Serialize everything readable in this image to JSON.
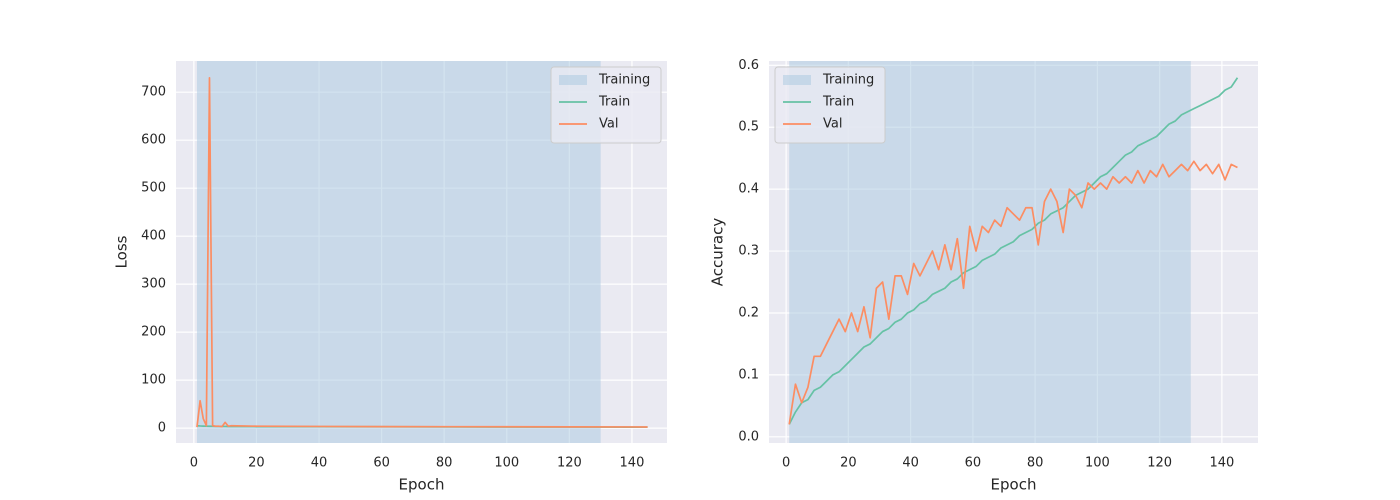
{
  "chart_data": [
    {
      "type": "line",
      "xlabel": "Epoch",
      "ylabel": "Loss",
      "xlim": [
        -5.7,
        151.2
      ],
      "ylim": [
        -31,
        765
      ],
      "xticks": [
        0,
        20,
        40,
        60,
        80,
        100,
        120,
        140
      ],
      "yticks": [
        0,
        100,
        200,
        300,
        400,
        500,
        600,
        700
      ],
      "grid": true,
      "legend": "upper right",
      "spans": [
        {
          "name": "Training",
          "start": 1,
          "end": 130,
          "color": "#a8c8e0"
        }
      ],
      "x": [
        1,
        2,
        3,
        4,
        5,
        6,
        7,
        8,
        9,
        10,
        11,
        12,
        20,
        40,
        60,
        80,
        100,
        120,
        140,
        145
      ],
      "series": [
        {
          "name": "Train",
          "color": "#66c2a5",
          "values": [
            5,
            4.5,
            4.2,
            4,
            3.9,
            3.8,
            3.7,
            3.6,
            3.5,
            3.5,
            3.4,
            3.4,
            3.2,
            3,
            2.8,
            2.6,
            2.4,
            2.2,
            2.1,
            2
          ]
        },
        {
          "name": "Val",
          "color": "#fc8d62",
          "values": [
            2,
            57,
            20,
            5,
            730,
            5,
            4,
            4,
            3,
            12,
            4,
            5,
            4,
            3.5,
            3.2,
            3,
            2.8,
            2.6,
            2.5,
            2.4
          ]
        }
      ]
    },
    {
      "type": "line",
      "xlabel": "Epoch",
      "ylabel": "Accuracy",
      "xlim": [
        -5.5,
        151.6
      ],
      "ylim": [
        -0.01,
        0.607
      ],
      "xticks": [
        0,
        20,
        40,
        60,
        80,
        100,
        120,
        140
      ],
      "yticks": [
        {
          "value": 0,
          "label": "0.0"
        },
        0.1,
        0.2,
        0.3,
        0.4,
        0.5,
        0.6
      ],
      "grid": true,
      "legend": "upper left",
      "spans": [
        {
          "name": "Training",
          "start": 1,
          "end": 130,
          "color": "#a8c8e0"
        }
      ],
      "x": [
        1,
        3,
        5,
        7,
        9,
        11,
        13,
        15,
        17,
        19,
        21,
        23,
        25,
        27,
        29,
        31,
        33,
        35,
        37,
        39,
        41,
        43,
        45,
        47,
        49,
        51,
        53,
        55,
        57,
        59,
        61,
        63,
        65,
        67,
        69,
        71,
        73,
        75,
        77,
        79,
        81,
        83,
        85,
        87,
        89,
        91,
        93,
        95,
        97,
        99,
        101,
        103,
        105,
        107,
        109,
        111,
        113,
        115,
        117,
        119,
        121,
        123,
        125,
        127,
        129,
        131,
        133,
        135,
        137,
        139,
        141,
        143,
        145
      ],
      "series": [
        {
          "name": "Train",
          "color": "#66c2a5",
          "values": [
            0.02,
            0.04,
            0.055,
            0.06,
            0.075,
            0.08,
            0.09,
            0.1,
            0.105,
            0.115,
            0.125,
            0.135,
            0.145,
            0.15,
            0.16,
            0.17,
            0.175,
            0.185,
            0.19,
            0.2,
            0.205,
            0.215,
            0.22,
            0.23,
            0.235,
            0.24,
            0.25,
            0.255,
            0.265,
            0.27,
            0.275,
            0.285,
            0.29,
            0.295,
            0.305,
            0.31,
            0.315,
            0.325,
            0.33,
            0.335,
            0.345,
            0.35,
            0.36,
            0.365,
            0.37,
            0.38,
            0.39,
            0.395,
            0.4,
            0.41,
            0.42,
            0.425,
            0.435,
            0.445,
            0.455,
            0.46,
            0.47,
            0.475,
            0.48,
            0.485,
            0.495,
            0.505,
            0.51,
            0.52,
            0.525,
            0.53,
            0.535,
            0.54,
            0.545,
            0.55,
            0.56,
            0.565,
            0.58
          ]
        },
        {
          "name": "Val",
          "color": "#fc8d62",
          "values": [
            0.02,
            0.085,
            0.055,
            0.08,
            0.13,
            0.13,
            0.15,
            0.17,
            0.19,
            0.17,
            0.2,
            0.17,
            0.21,
            0.16,
            0.24,
            0.25,
            0.19,
            0.26,
            0.26,
            0.23,
            0.28,
            0.26,
            0.28,
            0.3,
            0.27,
            0.31,
            0.27,
            0.32,
            0.24,
            0.34,
            0.3,
            0.34,
            0.33,
            0.35,
            0.34,
            0.37,
            0.36,
            0.35,
            0.37,
            0.37,
            0.31,
            0.38,
            0.4,
            0.38,
            0.33,
            0.4,
            0.39,
            0.37,
            0.41,
            0.4,
            0.41,
            0.4,
            0.42,
            0.41,
            0.42,
            0.41,
            0.43,
            0.41,
            0.43,
            0.42,
            0.44,
            0.42,
            0.43,
            0.44,
            0.43,
            0.445,
            0.43,
            0.44,
            0.425,
            0.44,
            0.415,
            0.44,
            0.435
          ]
        }
      ]
    }
  ]
}
